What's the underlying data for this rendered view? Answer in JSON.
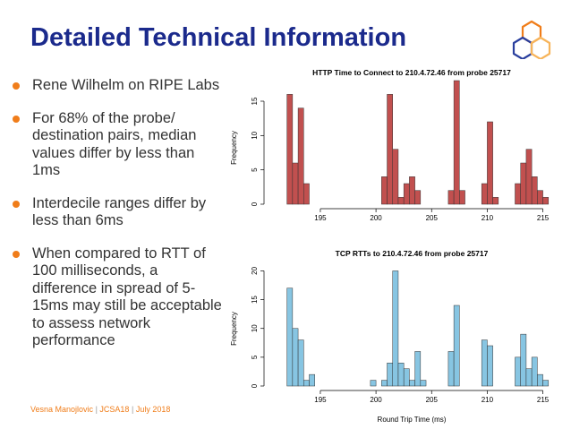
{
  "slide": {
    "title": "Detailed Technical Information",
    "bullets": [
      "Rene Wilhelm on RIPE Labs",
      "For 68% of the probe/ destination pairs, median values differ by less than 1ms",
      "Interdecile ranges differ by less than 6ms",
      "When compared to RTT of 100 milliseconds, a difference in spread of 5-15ms may still be acceptable to assess network performance"
    ],
    "footer": {
      "author": "Vesna Manojlovic",
      "event": "JCSA18",
      "date": "July 2018",
      "separator": "|"
    }
  },
  "colors": {
    "title": "#1b2a8c",
    "accent": "#f07d1a",
    "http_bars": "#c1504f",
    "tcp_bars": "#87c5e2"
  },
  "chart_data": [
    {
      "type": "bar",
      "title": "HTTP Time to Connect to 210.4.72.46 from probe 25717",
      "xlabel": "",
      "ylabel": "Frequency",
      "bin_width": 0.5,
      "xlim": [
        190.5,
        216.0
      ],
      "ylim": [
        0,
        18
      ],
      "xticks": [
        195,
        200,
        205,
        210,
        215
      ],
      "yticks": [
        0,
        5,
        10,
        15
      ],
      "bins_start": [
        192.0,
        192.5,
        193.0,
        193.5,
        200.5,
        201.0,
        201.5,
        202.0,
        202.5,
        203.0,
        203.5,
        204.0,
        206.5,
        207.0,
        207.5,
        209.5,
        210.0,
        210.5,
        212.5,
        213.0,
        213.5,
        214.0,
        214.5,
        215.0
      ],
      "values": [
        16,
        6,
        14,
        3,
        4,
        16,
        8,
        1,
        3,
        4,
        2,
        0,
        2,
        18,
        2,
        3,
        12,
        1,
        3,
        6,
        8,
        4,
        2,
        1
      ]
    },
    {
      "type": "bar",
      "title": "TCP RTTs to 210.4.72.46 from probe 25717",
      "xlabel": "Round Trip Time (ms)",
      "ylabel": "Frequency",
      "bin_width": 0.5,
      "xlim": [
        190.5,
        216.0
      ],
      "ylim": [
        0,
        21
      ],
      "xticks": [
        195,
        200,
        205,
        210,
        215
      ],
      "yticks": [
        0,
        5,
        10,
        15,
        20
      ],
      "bins_start": [
        192.0,
        192.5,
        193.0,
        193.5,
        194.0,
        199.5,
        200.5,
        201.0,
        201.5,
        202.0,
        202.5,
        203.0,
        203.5,
        204.0,
        206.5,
        207.0,
        209.5,
        210.0,
        212.5,
        213.0,
        213.5,
        214.0,
        214.5,
        215.0
      ],
      "values": [
        17,
        10,
        8,
        1,
        2,
        1,
        1,
        4,
        20,
        4,
        3,
        1,
        6,
        1,
        6,
        14,
        8,
        7,
        5,
        9,
        3,
        5,
        2,
        1
      ]
    }
  ]
}
